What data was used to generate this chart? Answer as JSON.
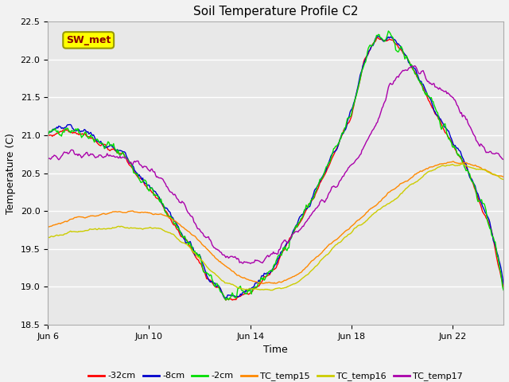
{
  "title": "Soil Temperature Profile C2",
  "xlabel": "Time",
  "ylabel": "Temperature (C)",
  "ylim": [
    18.5,
    22.5
  ],
  "xlim": [
    0,
    18
  ],
  "xtick_labels": [
    "Jun 6",
    "Jun 10",
    "Jun 14",
    "Jun 18",
    "Jun 22"
  ],
  "xtick_positions": [
    0,
    4,
    8,
    12,
    16
  ],
  "ytick_labels": [
    "18.5",
    "19.0",
    "19.5",
    "20.0",
    "20.5",
    "21.0",
    "21.5",
    "22.0",
    "22.5"
  ],
  "ytick_positions": [
    18.5,
    19.0,
    19.5,
    20.0,
    20.5,
    21.0,
    21.5,
    22.0,
    22.5
  ],
  "annotation_text": "SW_met",
  "legend_labels": [
    "-32cm",
    "-8cm",
    "-2cm",
    "TC_temp15",
    "TC_temp16",
    "TC_temp17"
  ],
  "legend_colors": [
    "#ff0000",
    "#0000cc",
    "#00dd00",
    "#ff8800",
    "#cccc00",
    "#aa00aa"
  ],
  "background_color": "#e8e8e8",
  "grid_color": "#ffffff",
  "title_fontsize": 11,
  "axis_fontsize": 9,
  "tick_fontsize": 8,
  "fig_width": 6.4,
  "fig_height": 4.8,
  "dpi": 100
}
